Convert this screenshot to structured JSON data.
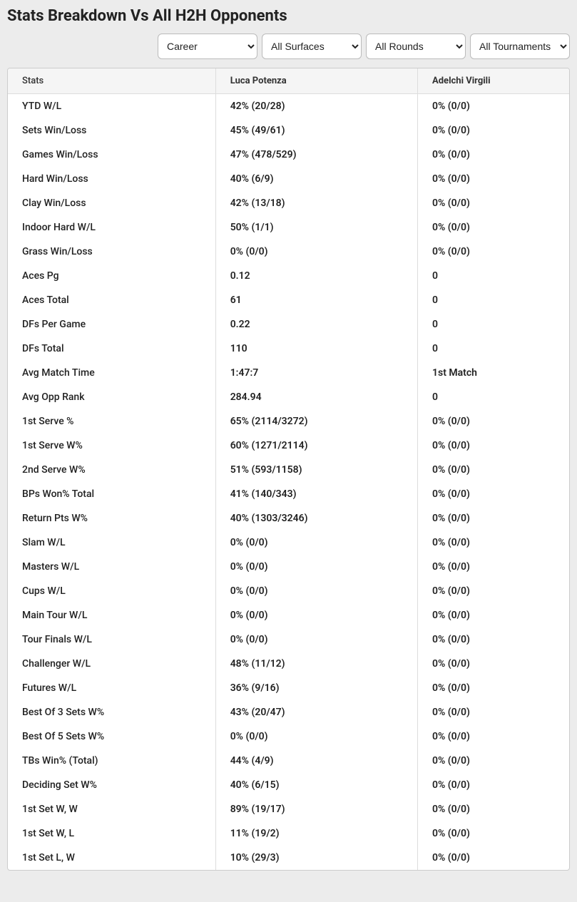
{
  "title": "Stats Breakdown Vs All H2H Opponents",
  "filters": {
    "period": "Career",
    "surface": "All Surfaces",
    "round": "All Rounds",
    "tournament": "All Tournaments"
  },
  "columns": {
    "stats": "Stats",
    "player1": "Luca Potenza",
    "player2": "Adelchi Virgili"
  },
  "rows": [
    {
      "stat": "YTD W/L",
      "p1": "42% (20/28)",
      "p2": "0% (0/0)"
    },
    {
      "stat": "Sets Win/Loss",
      "p1": "45% (49/61)",
      "p2": "0% (0/0)"
    },
    {
      "stat": "Games Win/Loss",
      "p1": "47% (478/529)",
      "p2": "0% (0/0)"
    },
    {
      "stat": "Hard Win/Loss",
      "p1": "40% (6/9)",
      "p2": "0% (0/0)"
    },
    {
      "stat": "Clay Win/Loss",
      "p1": "42% (13/18)",
      "p2": "0% (0/0)"
    },
    {
      "stat": "Indoor Hard W/L",
      "p1": "50% (1/1)",
      "p2": "0% (0/0)"
    },
    {
      "stat": "Grass Win/Loss",
      "p1": "0% (0/0)",
      "p2": "0% (0/0)"
    },
    {
      "stat": "Aces Pg",
      "p1": "0.12",
      "p2": "0"
    },
    {
      "stat": "Aces Total",
      "p1": "61",
      "p2": "0"
    },
    {
      "stat": "DFs Per Game",
      "p1": "0.22",
      "p2": "0"
    },
    {
      "stat": "DFs Total",
      "p1": "110",
      "p2": "0"
    },
    {
      "stat": "Avg Match Time",
      "p1": "1:47:7",
      "p2": "1st Match"
    },
    {
      "stat": "Avg Opp Rank",
      "p1": "284.94",
      "p2": "0"
    },
    {
      "stat": "1st Serve %",
      "p1": "65% (2114/3272)",
      "p2": "0% (0/0)"
    },
    {
      "stat": "1st Serve W%",
      "p1": "60% (1271/2114)",
      "p2": "0% (0/0)"
    },
    {
      "stat": "2nd Serve W%",
      "p1": "51% (593/1158)",
      "p2": "0% (0/0)"
    },
    {
      "stat": "BPs Won% Total",
      "p1": "41% (140/343)",
      "p2": "0% (0/0)"
    },
    {
      "stat": "Return Pts W%",
      "p1": "40% (1303/3246)",
      "p2": "0% (0/0)"
    },
    {
      "stat": "Slam W/L",
      "p1": "0% (0/0)",
      "p2": "0% (0/0)"
    },
    {
      "stat": "Masters W/L",
      "p1": "0% (0/0)",
      "p2": "0% (0/0)"
    },
    {
      "stat": "Cups W/L",
      "p1": "0% (0/0)",
      "p2": "0% (0/0)"
    },
    {
      "stat": "Main Tour W/L",
      "p1": "0% (0/0)",
      "p2": "0% (0/0)"
    },
    {
      "stat": "Tour Finals W/L",
      "p1": "0% (0/0)",
      "p2": "0% (0/0)"
    },
    {
      "stat": "Challenger W/L",
      "p1": "48% (11/12)",
      "p2": "0% (0/0)"
    },
    {
      "stat": "Futures W/L",
      "p1": "36% (9/16)",
      "p2": "0% (0/0)"
    },
    {
      "stat": "Best Of 3 Sets W%",
      "p1": "43% (20/47)",
      "p2": "0% (0/0)"
    },
    {
      "stat": "Best Of 5 Sets W%",
      "p1": "0% (0/0)",
      "p2": "0% (0/0)"
    },
    {
      "stat": "TBs Win% (Total)",
      "p1": "44% (4/9)",
      "p2": "0% (0/0)"
    },
    {
      "stat": "Deciding Set W%",
      "p1": "40% (6/15)",
      "p2": "0% (0/0)"
    },
    {
      "stat": "1st Set W, W",
      "p1": "89% (19/17)",
      "p2": "0% (0/0)"
    },
    {
      "stat": "1st Set W, L",
      "p1": "11% (19/2)",
      "p2": "0% (0/0)"
    },
    {
      "stat": "1st Set L, W",
      "p1": "10% (29/3)",
      "p2": "0% (0/0)"
    }
  ],
  "style": {
    "bg": "#ececec",
    "card_bg": "#ffffff",
    "border": "#cccccc",
    "header_bg": "#f5f5f5",
    "text": "#222222"
  }
}
